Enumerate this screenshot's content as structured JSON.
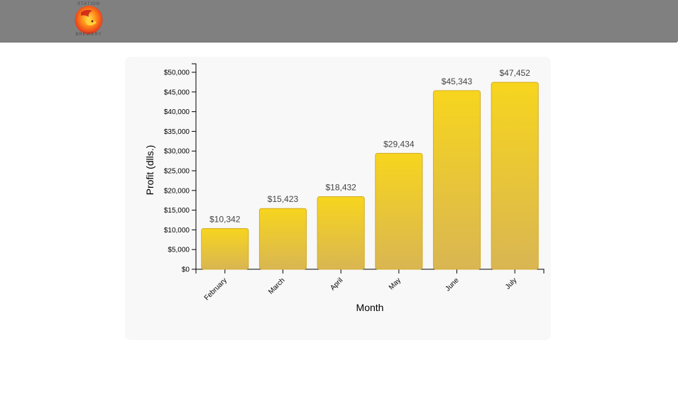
{
  "header": {
    "logo": {
      "top_text": "STATION",
      "bottom_text": "BREWERY",
      "icon": "lion-logo-icon"
    }
  },
  "chart_data": {
    "type": "bar",
    "categories": [
      "February",
      "March",
      "April",
      "May",
      "June",
      "July"
    ],
    "values": [
      10342,
      15423,
      18432,
      29434,
      45343,
      47452
    ],
    "value_labels": [
      "$10,342",
      "$15,423",
      "$18,432",
      "$29,434",
      "$45,343",
      "$47,452"
    ],
    "xlabel": "Month",
    "ylabel": "Profit (dlls.)",
    "ylim": [
      0,
      50000
    ],
    "yticks": [
      0,
      5000,
      10000,
      15000,
      20000,
      25000,
      30000,
      35000,
      40000,
      45000,
      50000
    ],
    "ytick_labels": [
      "$0",
      "$5,000",
      "$10,000",
      "$15,000",
      "$20,000",
      "$25,000",
      "$30,000",
      "$35,000",
      "$40,000",
      "$45,000",
      "$50,000"
    ],
    "grid": false,
    "legend": "none",
    "colors": {
      "bar_top": "#f7d51e",
      "bar_bottom": "#d9b652",
      "bar_stroke": "#d4ad2a",
      "axis": "#000000",
      "label": "#444444"
    }
  }
}
